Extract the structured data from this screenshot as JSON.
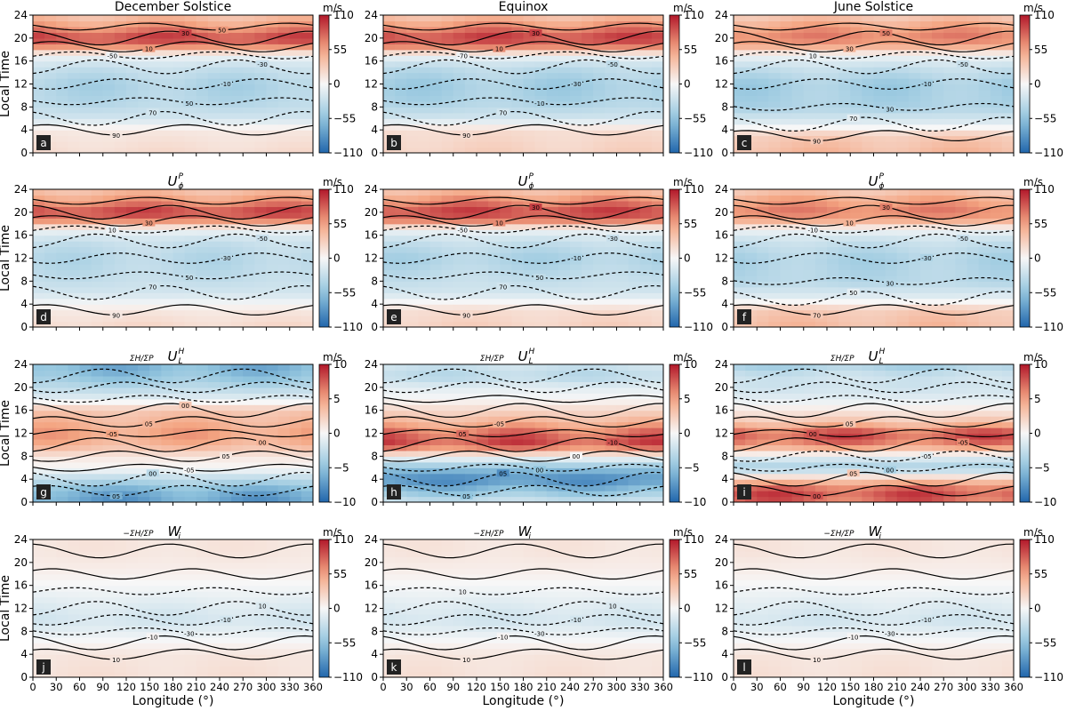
{
  "figure": {
    "colorbar_unit": "m/s",
    "xlabel": "Longitude (°)",
    "ylabel": "Local Time",
    "column_titles": [
      "December Solstice",
      "Equinox",
      "June Solstice"
    ],
    "row_titles": [
      {
        "base": "U",
        "sub": "ϕ",
        "sup": "P",
        "prefix": ""
      },
      {
        "base": "U",
        "sub": "L",
        "sup": "H",
        "prefix": "ΣH/ΣP"
      },
      {
        "base": "W",
        "sub": "i",
        "sup": "",
        "prefix": "−ΣH/ΣP"
      }
    ],
    "colors": {
      "positive": "#b2182b",
      "zero": "#f7f7f7",
      "negative": "#2166ac"
    }
  },
  "chart_data": [
    {
      "type": "heatmap",
      "panel": "a",
      "row": 1,
      "col": 1,
      "title": "December Solstice",
      "xlabel": "",
      "ylabel": "Local Time",
      "xlim": [
        0,
        360
      ],
      "ylim": [
        0,
        24
      ],
      "clim": [
        -110,
        110
      ],
      "cbar_ticks": [
        110,
        55,
        0,
        -55,
        -110
      ],
      "bands": [
        [
          0,
          18
        ],
        [
          4,
          10
        ],
        [
          6,
          -20
        ],
        [
          9,
          -35
        ],
        [
          12,
          -40
        ],
        [
          15,
          -25
        ],
        [
          17,
          -5
        ],
        [
          18.5,
          60
        ],
        [
          20,
          95
        ],
        [
          22,
          60
        ],
        [
          24,
          35
        ]
      ],
      "contour_labels": [
        "90",
        "70",
        "50",
        "-10",
        "-30",
        "-50",
        "10",
        "30",
        "50"
      ]
    },
    {
      "type": "heatmap",
      "panel": "b",
      "row": 1,
      "col": 2,
      "title": "Equinox",
      "xlabel": "",
      "ylabel": "",
      "xlim": [
        0,
        360
      ],
      "ylim": [
        0,
        24
      ],
      "clim": [
        -110,
        110
      ],
      "cbar_ticks": [
        110,
        55,
        0,
        -55,
        -110
      ],
      "bands": [
        [
          0,
          25
        ],
        [
          4,
          18
        ],
        [
          6,
          -20
        ],
        [
          9,
          -40
        ],
        [
          12,
          -45
        ],
        [
          15,
          -30
        ],
        [
          17,
          -5
        ],
        [
          18.5,
          65
        ],
        [
          20,
          95
        ],
        [
          22,
          65
        ],
        [
          24,
          35
        ]
      ],
      "contour_labels": [
        "90",
        "70",
        "-10",
        "-30",
        "-50",
        "-70",
        "10",
        "30"
      ]
    },
    {
      "type": "heatmap",
      "panel": "c",
      "row": 1,
      "col": 3,
      "title": "June Solstice",
      "xlabel": "",
      "ylabel": "",
      "xlim": [
        0,
        360
      ],
      "ylim": [
        0,
        24
      ],
      "clim": [
        -110,
        110
      ],
      "cbar_ticks": [
        110,
        55,
        0,
        -55,
        -110
      ],
      "bands": [
        [
          0,
          40
        ],
        [
          3,
          30
        ],
        [
          5,
          -10
        ],
        [
          8,
          -40
        ],
        [
          12,
          -45
        ],
        [
          15,
          -25
        ],
        [
          17,
          -5
        ],
        [
          18.5,
          45
        ],
        [
          20,
          70
        ],
        [
          22,
          55
        ],
        [
          24,
          30
        ]
      ],
      "contour_labels": [
        "90",
        "70",
        "30",
        "-10",
        "-50",
        "10",
        "30",
        "50"
      ]
    },
    {
      "type": "heatmap",
      "panel": "d",
      "row": 2,
      "col": 1,
      "title": "U_ϕ^P",
      "xlabel": "",
      "ylabel": "Local Time",
      "xlim": [
        0,
        360
      ],
      "ylim": [
        0,
        24
      ],
      "clim": [
        -110,
        110
      ],
      "cbar_ticks": [
        110,
        55,
        0,
        -55,
        -110
      ],
      "bands": [
        [
          0,
          20
        ],
        [
          3,
          10
        ],
        [
          6,
          -20
        ],
        [
          9,
          -30
        ],
        [
          12,
          -35
        ],
        [
          15,
          -25
        ],
        [
          17,
          -5
        ],
        [
          18.5,
          60
        ],
        [
          20,
          95
        ],
        [
          22,
          60
        ],
        [
          24,
          35
        ]
      ],
      "contour_labels": [
        "90",
        "70",
        "50",
        "-30",
        "-50",
        "10",
        "30"
      ]
    },
    {
      "type": "heatmap",
      "panel": "e",
      "row": 2,
      "col": 2,
      "title": "U_ϕ^P",
      "xlabel": "",
      "ylabel": "",
      "xlim": [
        0,
        360
      ],
      "ylim": [
        0,
        24
      ],
      "clim": [
        -110,
        110
      ],
      "cbar_ticks": [
        110,
        55,
        0,
        -55,
        -110
      ],
      "bands": [
        [
          0,
          25
        ],
        [
          3,
          18
        ],
        [
          6,
          -20
        ],
        [
          9,
          -30
        ],
        [
          12,
          -40
        ],
        [
          15,
          -25
        ],
        [
          17,
          -5
        ],
        [
          18.5,
          65
        ],
        [
          20,
          95
        ],
        [
          22,
          65
        ],
        [
          24,
          35
        ]
      ],
      "contour_labels": [
        "90",
        "70",
        "50",
        "-10",
        "-30",
        "-50",
        "10",
        "30"
      ]
    },
    {
      "type": "heatmap",
      "panel": "f",
      "row": 2,
      "col": 3,
      "title": "U_ϕ^P",
      "xlabel": "",
      "ylabel": "",
      "xlim": [
        0,
        360
      ],
      "ylim": [
        0,
        24
      ],
      "clim": [
        -110,
        110
      ],
      "cbar_ticks": [
        110,
        55,
        0,
        -55,
        -110
      ],
      "bands": [
        [
          0,
          40
        ],
        [
          3,
          30
        ],
        [
          5,
          -10
        ],
        [
          8,
          -35
        ],
        [
          12,
          -40
        ],
        [
          15,
          -25
        ],
        [
          17,
          -5
        ],
        [
          18.5,
          45
        ],
        [
          20,
          70
        ],
        [
          22,
          55
        ],
        [
          24,
          30
        ]
      ],
      "contour_labels": [
        "70",
        "50",
        "30",
        "-30",
        "-50",
        "-10",
        "10",
        "30"
      ]
    },
    {
      "type": "heatmap",
      "panel": "g",
      "row": 3,
      "col": 1,
      "title": "ΣH/ΣP U_L^H",
      "xlabel": "",
      "ylabel": "Local Time",
      "xlim": [
        0,
        360
      ],
      "ylim": [
        0,
        24
      ],
      "clim": [
        -10,
        10
      ],
      "cbar_ticks": [
        10,
        5,
        0,
        -5,
        -10
      ],
      "bands": [
        [
          0,
          -7
        ],
        [
          2,
          -6
        ],
        [
          4,
          -3
        ],
        [
          6,
          0
        ],
        [
          8,
          1
        ],
        [
          10,
          4
        ],
        [
          12,
          5
        ],
        [
          14,
          4
        ],
        [
          16,
          3
        ],
        [
          18,
          -1
        ],
        [
          20,
          -3
        ],
        [
          22,
          -5
        ],
        [
          24,
          -6
        ]
      ],
      "contour_labels": [
        "05",
        "00",
        "-05",
        "05",
        "00",
        "-05",
        "05",
        "00"
      ]
    },
    {
      "type": "heatmap",
      "panel": "h",
      "row": 3,
      "col": 2,
      "title": "ΣH/ΣP U_L^H",
      "xlabel": "",
      "ylabel": "",
      "xlim": [
        0,
        360
      ],
      "ylim": [
        0,
        24
      ],
      "clim": [
        -10,
        10
      ],
      "cbar_ticks": [
        10,
        5,
        0,
        -5,
        -10
      ],
      "bands": [
        [
          0,
          -2
        ],
        [
          2,
          -5
        ],
        [
          4,
          -8
        ],
        [
          6,
          -5
        ],
        [
          8,
          0
        ],
        [
          10,
          8
        ],
        [
          12,
          7
        ],
        [
          14,
          4
        ],
        [
          16,
          2
        ],
        [
          18,
          0
        ],
        [
          20,
          -1
        ],
        [
          22,
          -3
        ],
        [
          24,
          -2
        ]
      ],
      "contour_labels": [
        "05",
        "05",
        "00",
        "00",
        "-10",
        "05",
        "-05"
      ]
    },
    {
      "type": "heatmap",
      "panel": "i",
      "row": 3,
      "col": 3,
      "title": "ΣH/ΣP U_L^H",
      "xlabel": "",
      "ylabel": "",
      "xlim": [
        0,
        360
      ],
      "ylim": [
        0,
        24
      ],
      "clim": [
        -10,
        10
      ],
      "cbar_ticks": [
        10,
        5,
        0,
        -5,
        -10
      ],
      "bands": [
        [
          0,
          7
        ],
        [
          2,
          8
        ],
        [
          4,
          3
        ],
        [
          6,
          -4
        ],
        [
          8,
          -1
        ],
        [
          10,
          6
        ],
        [
          12,
          8
        ],
        [
          14,
          3
        ],
        [
          16,
          1
        ],
        [
          18,
          -1
        ],
        [
          20,
          -2
        ],
        [
          22,
          -2
        ],
        [
          24,
          -4
        ]
      ],
      "contour_labels": [
        "00",
        "05",
        "00",
        "-05",
        "-05",
        "00",
        "05"
      ]
    },
    {
      "type": "heatmap",
      "panel": "j",
      "row": 4,
      "col": 1,
      "title": "−ΣH/ΣP W_i",
      "xlabel": "Longitude (°)",
      "ylabel": "Local Time",
      "xlim": [
        0,
        360
      ],
      "ylim": [
        0,
        24
      ],
      "clim": [
        -110,
        110
      ],
      "cbar_ticks": [
        110,
        55,
        0,
        -55,
        -110
      ],
      "bands": [
        [
          0,
          15
        ],
        [
          4,
          12
        ],
        [
          6,
          2
        ],
        [
          8,
          -10
        ],
        [
          10,
          -20
        ],
        [
          12,
          -15
        ],
        [
          15,
          -5
        ],
        [
          18,
          5
        ],
        [
          22,
          12
        ],
        [
          24,
          12
        ]
      ],
      "contour_labels": [
        "10",
        "-10",
        "-30",
        "-10",
        "10"
      ]
    },
    {
      "type": "heatmap",
      "panel": "k",
      "row": 4,
      "col": 2,
      "title": "−ΣH/ΣP W_i",
      "xlabel": "Longitude (°)",
      "ylabel": "",
      "xlim": [
        0,
        360
      ],
      "ylim": [
        0,
        24
      ],
      "clim": [
        -110,
        110
      ],
      "cbar_ticks": [
        110,
        55,
        0,
        -55,
        -110
      ],
      "bands": [
        [
          0,
          15
        ],
        [
          4,
          12
        ],
        [
          6,
          2
        ],
        [
          8,
          -10
        ],
        [
          10,
          -20
        ],
        [
          12,
          -15
        ],
        [
          15,
          -5
        ],
        [
          18,
          5
        ],
        [
          22,
          12
        ],
        [
          24,
          12
        ]
      ],
      "contour_labels": [
        "10",
        "-10",
        "-30",
        "-10",
        "10",
        "10"
      ]
    },
    {
      "type": "heatmap",
      "panel": "l",
      "row": 4,
      "col": 3,
      "title": "−ΣH/ΣP W_i",
      "xlabel": "Longitude (°)",
      "ylabel": "",
      "xlim": [
        0,
        360
      ],
      "ylim": [
        0,
        24
      ],
      "clim": [
        -110,
        110
      ],
      "cbar_ticks": [
        110,
        55,
        0,
        -55,
        -110
      ],
      "bands": [
        [
          0,
          15
        ],
        [
          4,
          12
        ],
        [
          6,
          2
        ],
        [
          8,
          -10
        ],
        [
          10,
          -20
        ],
        [
          12,
          -15
        ],
        [
          15,
          -5
        ],
        [
          18,
          5
        ],
        [
          22,
          12
        ],
        [
          24,
          12
        ]
      ],
      "contour_labels": [
        "10",
        "-10",
        "-30",
        "-10"
      ]
    }
  ]
}
